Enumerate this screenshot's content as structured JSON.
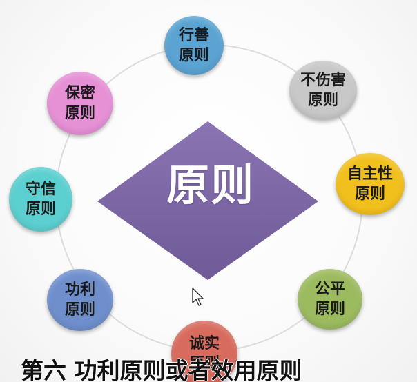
{
  "center": {
    "label": "原则",
    "color": "#7b65a3"
  },
  "nodes": [
    {
      "line1": "行善",
      "line2": "原则",
      "color": "#5aa3d2"
    },
    {
      "line1": "不伤害",
      "line2": "原则",
      "color": "#c8c8c8"
    },
    {
      "line1": "自主性",
      "line2": "原则",
      "color": "#f2c01c"
    },
    {
      "line1": "公平",
      "line2": "原则",
      "color": "#9cbb5f"
    },
    {
      "line1": "诚实",
      "line2": "原则",
      "color": "#d76b5e"
    },
    {
      "line1": "功利",
      "line2": "原则",
      "color": "#6f8fcc"
    },
    {
      "line1": "守信",
      "line2": "原则",
      "color": "#5ccfd0"
    },
    {
      "line1": "保密",
      "line2": "原则",
      "color": "#e690d6"
    }
  ],
  "caption": {
    "text": "第六 功利原则或者效用原则"
  }
}
